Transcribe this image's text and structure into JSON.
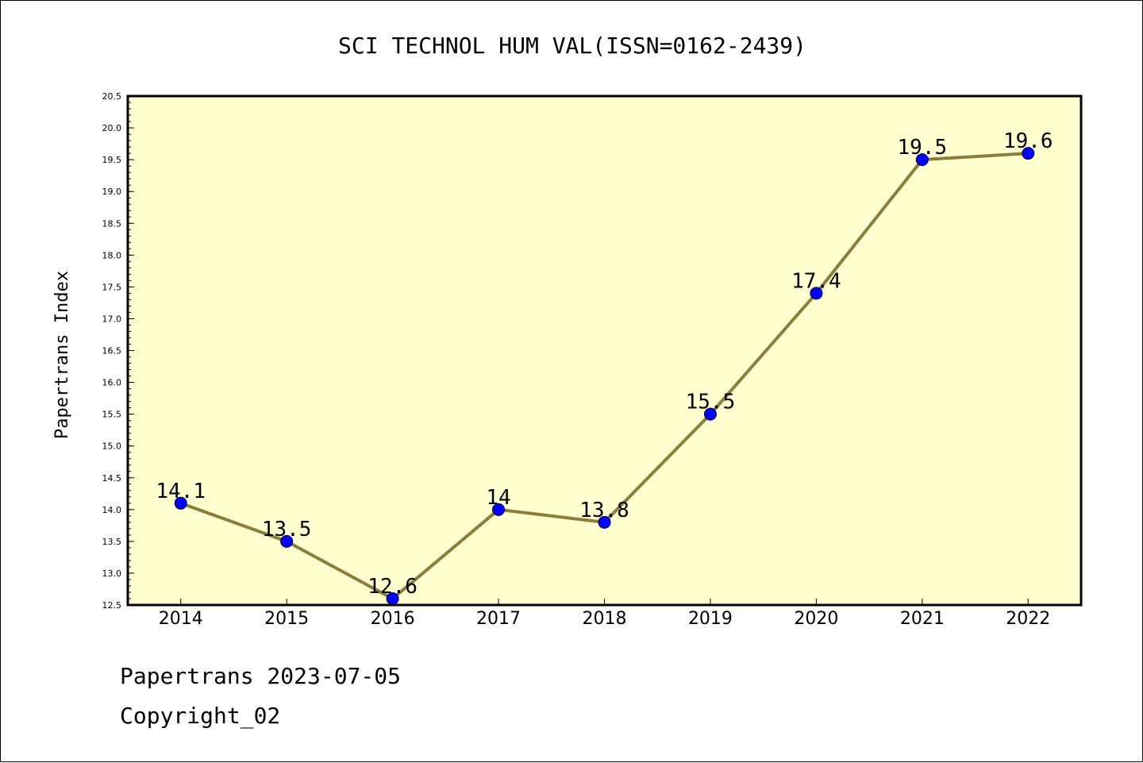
{
  "chart_data": {
    "type": "line",
    "title": "SCI TECHNOL HUM VAL(ISSN=0162-2439)",
    "xlabel": "",
    "ylabel": "Papertrans Index",
    "categories": [
      "2014",
      "2015",
      "2016",
      "2017",
      "2018",
      "2019",
      "2020",
      "2021",
      "2022"
    ],
    "series": [
      {
        "values": [
          14.1,
          13.5,
          12.6,
          14.0,
          13.8,
          15.5,
          17.4,
          19.5,
          19.6
        ],
        "labels": [
          "14.1",
          "13.5",
          "12.6",
          "14",
          "13.8",
          "15.5",
          "17.4",
          "19.5",
          "19.6"
        ]
      }
    ],
    "ylim": [
      12.5,
      20.5
    ],
    "yticks": [
      "12.5",
      "13.0",
      "13.5",
      "14.0",
      "14.5",
      "15.0",
      "15.5",
      "16.0",
      "16.5",
      "17.0",
      "17.5",
      "18.0",
      "18.5",
      "19.0",
      "19.5",
      "20.0",
      "20.5"
    ],
    "grid": false,
    "colors": {
      "plot_background": "#ffffd0",
      "line": "#8b7d3a",
      "marker": "#0000ff"
    }
  },
  "footer": {
    "line1": "Papertrans 2023-07-05",
    "line2": "Copyright_02"
  }
}
